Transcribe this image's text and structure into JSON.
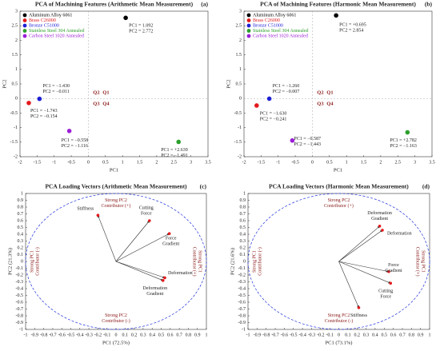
{
  "chart_data": [
    {
      "type": "scatter",
      "title": "PCA of Machining Features (Arithmetic Mean Measurement)",
      "panel_label": "(a)",
      "x_label": "PC1",
      "y_label": "PC2",
      "xlim": [
        -2,
        3.5
      ],
      "xticks": [
        -2,
        -1.5,
        -1,
        -0.5,
        0,
        0.5,
        1,
        1.5,
        2,
        2.5,
        3,
        3.5
      ],
      "ylim": [
        -2,
        3
      ],
      "yticks": [
        -2,
        -1.5,
        -1,
        -0.5,
        0,
        0.5,
        1,
        1.5,
        2,
        2.5,
        3
      ],
      "quadrants": [
        "Q1",
        "Q2",
        "Q3",
        "Q4"
      ],
      "series": [
        {
          "name": "Aluminum Alloy 6061",
          "color": "#000000",
          "x": [
            1.092
          ],
          "values": [
            2.772
          ],
          "x_labels": [
            "PC1 = 1.092"
          ],
          "value_labels": [
            "PC2 = 2.772"
          ]
        },
        {
          "name": "Brass C26000",
          "color": "#e31a1c",
          "x": [
            -1.743
          ],
          "values": [
            -0.154
          ],
          "x_labels": [
            "PC1 = −1.743"
          ],
          "value_labels": [
            "PC2 = −0.154"
          ]
        },
        {
          "name": "Bronze C51000",
          "color": "#1f1fd6",
          "x": [
            -1.43
          ],
          "values": [
            -0.011
          ],
          "x_labels": [
            "PC1 = −1.430"
          ],
          "value_labels": [
            "PC2 = −0.011"
          ]
        },
        {
          "name": "Stainless Steel 304 Annealed",
          "color": "#2ca02c",
          "x": [
            2.639
          ],
          "values": [
            -1.491
          ],
          "x_labels": [
            "PC1 = +2.639"
          ],
          "value_labels": [
            "PC2 = −1.491"
          ]
        },
        {
          "name": "Carbon Steel 1020 Annealed",
          "color": "#9b1fd6",
          "x": [
            -0.558
          ],
          "values": [
            -1.116
          ],
          "x_labels": [
            "PC1 = −0.558"
          ],
          "value_labels": [
            "PC2 = −1.116"
          ]
        }
      ]
    },
    {
      "type": "scatter",
      "title": "PCA of Machining Features (Harmonic Mean Measurement)",
      "panel_label": "(b)",
      "x_label": "PC1",
      "y_label": "PC2",
      "xlim": [
        -2,
        3.5
      ],
      "xticks": [
        -2,
        -1.5,
        -1,
        -0.5,
        0,
        0.5,
        1,
        1.5,
        2,
        2.5,
        3,
        3.5
      ],
      "ylim": [
        -2,
        3
      ],
      "yticks": [
        -2,
        -1.5,
        -1,
        -0.5,
        0,
        0.5,
        1,
        1.5,
        2,
        2.5,
        3
      ],
      "quadrants": [
        "Q1",
        "Q2",
        "Q3",
        "Q4"
      ],
      "series": [
        {
          "name": "Aluminum Alloy 6061",
          "color": "#000000",
          "x": [
            0.695
          ],
          "values": [
            2.854
          ],
          "x_labels": [
            "PC1 = +0.695"
          ],
          "value_labels": [
            "PC2 = 2.854"
          ]
        },
        {
          "name": "Brass C26000",
          "color": "#e31a1c",
          "x": [
            -1.63
          ],
          "values": [
            -0.241
          ],
          "x_labels": [
            "PC1 = −1.630"
          ],
          "value_labels": [
            "PC2 = −0.241"
          ]
        },
        {
          "name": "Bronze C51000",
          "color": "#1f1fd6",
          "x": [
            -1.26
          ],
          "values": [
            -0.007
          ],
          "x_labels": [
            "PC1 = −1.260"
          ],
          "value_labels": [
            "PC2 = −0.007"
          ]
        },
        {
          "name": "Stainless Steel 304 Annealed",
          "color": "#2ca02c",
          "x": [
            2.782
          ],
          "values": [
            -1.163
          ],
          "x_labels": [
            "PC1 = +2.782"
          ],
          "value_labels": [
            "PC2 = −1.163"
          ]
        },
        {
          "name": "Carbon Steel 1020 Annealed",
          "color": "#9b1fd6",
          "x": [
            -0.587
          ],
          "values": [
            -1.443
          ],
          "x_labels": [
            "PC1 = −0.587"
          ],
          "value_labels": [
            "PC2 = −1.443"
          ]
        }
      ]
    },
    {
      "type": "vector",
      "title": "PCA Loading Vectors (Arithmetic Mean Measurement)",
      "panel_label": "(c)",
      "x_label": "PC1 (72.5%)",
      "y_label": "PC2 (21.3%)",
      "xlim": [
        -1,
        1
      ],
      "xticks": [
        -1,
        -0.9,
        -0.8,
        -0.7,
        -0.6,
        -0.5,
        -0.4,
        -0.3,
        -0.2,
        -0.1,
        0,
        0.1,
        0.2,
        0.3,
        0.4,
        0.5,
        0.6,
        0.7,
        0.8,
        0.9,
        1
      ],
      "ylim": [
        -1,
        1
      ],
      "yticks": [
        -1,
        -0.9,
        -0.8,
        -0.7,
        -0.6,
        -0.5,
        -0.4,
        -0.3,
        -0.2,
        -0.1,
        0,
        0.1,
        0.2,
        0.3,
        0.4,
        0.5,
        0.6,
        0.7,
        0.8,
        0.9,
        1
      ],
      "annotations": {
        "top": [
          "Strong PC2",
          "Contributor (+)"
        ],
        "bottom": [
          "Strong PC2",
          "Contributor (-)"
        ],
        "left": [
          "Strong PC1",
          "Contributor (-)"
        ],
        "right": [
          "Strong PC1",
          "Contributor (+)"
        ]
      },
      "vectors": [
        {
          "name": [
            "Stiffness"
          ],
          "x": -0.2,
          "y": 0.68
        },
        {
          "name": [
            "Cutting",
            "Force"
          ],
          "x": 0.37,
          "y": 0.6
        },
        {
          "name": [
            "Force",
            "Gradient"
          ],
          "x": 0.59,
          "y": 0.41
        },
        {
          "name": [
            "Deformation"
          ],
          "x": 0.54,
          "y": -0.24
        },
        {
          "name": [
            "Deformation",
            "Gradient"
          ],
          "x": 0.52,
          "y": -0.28
        }
      ]
    },
    {
      "type": "vector",
      "title": "PCA Loading Vectors (Harmonic Mean Measurement)",
      "panel_label": "(d)",
      "x_label": "PC1 (73.1%)",
      "y_label": "PC2 (21.6%)",
      "xlim": [
        -1,
        1
      ],
      "xticks": [
        -1,
        -0.9,
        -0.8,
        -0.7,
        -0.6,
        -0.5,
        -0.4,
        -0.3,
        -0.2,
        -0.1,
        0,
        0.1,
        0.2,
        0.3,
        0.4,
        0.5,
        0.6,
        0.7,
        0.8,
        0.9,
        1
      ],
      "ylim": [
        -1,
        1
      ],
      "yticks": [
        -1,
        -0.9,
        -0.8,
        -0.7,
        -0.6,
        -0.5,
        -0.4,
        -0.3,
        -0.2,
        -0.1,
        0,
        0.1,
        0.2,
        0.3,
        0.4,
        0.5,
        0.6,
        0.7,
        0.8,
        0.9,
        1
      ],
      "annotations": {
        "top": [
          "Strong PC2",
          "Contributor (+)"
        ],
        "bottom": [
          "Strong PC2",
          "Contributor (-)"
        ],
        "left": [
          "Strong PC1",
          "Contributor (-)"
        ],
        "right": [
          "Strong PC1",
          "Contributor (+)"
        ]
      },
      "vectors": [
        {
          "name": [
            "Deformation",
            "Gradient"
          ],
          "x": 0.45,
          "y": 0.52
        },
        {
          "name": [
            "Deformation"
          ],
          "x": 0.48,
          "y": 0.46
        },
        {
          "name": [
            "Force",
            "Gradient"
          ],
          "x": 0.55,
          "y": -0.15
        },
        {
          "name": [
            "Cutting",
            "Force"
          ],
          "x": 0.57,
          "y": -0.32
        },
        {
          "name": [
            "Stiffness"
          ],
          "x": 0.22,
          "y": -0.68
        }
      ]
    }
  ]
}
